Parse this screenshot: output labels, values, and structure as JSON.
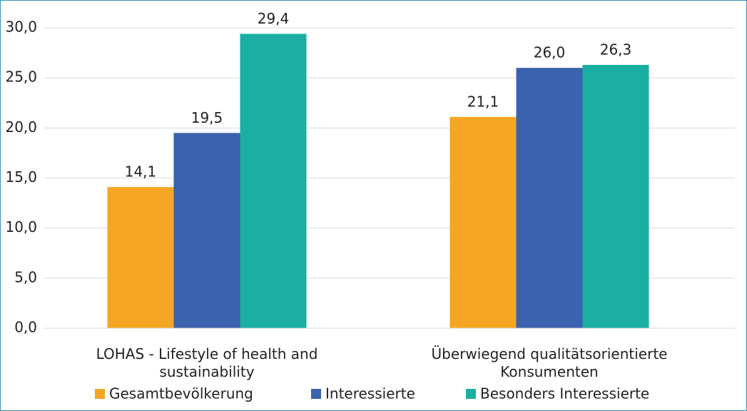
{
  "chart_data": {
    "type": "bar",
    "categories": [
      "LOHAS - Lifestyle of health and sustainability",
      "Überwiegend qualitätsorientierte Konsumenten"
    ],
    "series": [
      {
        "name": "Gesamtbevölkerung",
        "color": "#f5a623",
        "values": [
          14.1,
          21.1
        ],
        "value_labels": [
          "14,1",
          "21,1"
        ]
      },
      {
        "name": "Interessierte",
        "color": "#3b62ae",
        "values": [
          19.5,
          26.0
        ],
        "value_labels": [
          "19,5",
          "26,0"
        ]
      },
      {
        "name": "Besonders Interessierte",
        "color": "#1aafa2",
        "values": [
          29.4,
          26.3
        ],
        "value_labels": [
          "29,4",
          "26,3"
        ]
      }
    ],
    "ylim": [
      0,
      30
    ],
    "yticks": [
      {
        "value": 0,
        "label": "0,0"
      },
      {
        "value": 5,
        "label": "5,0"
      },
      {
        "value": 10,
        "label": "10,0"
      },
      {
        "value": 15,
        "label": "15,0"
      },
      {
        "value": 20,
        "label": "20,0"
      },
      {
        "value": 25,
        "label": "25,0"
      },
      {
        "value": 30,
        "label": "30,0"
      }
    ],
    "grid": true,
    "legend": "bottom"
  }
}
